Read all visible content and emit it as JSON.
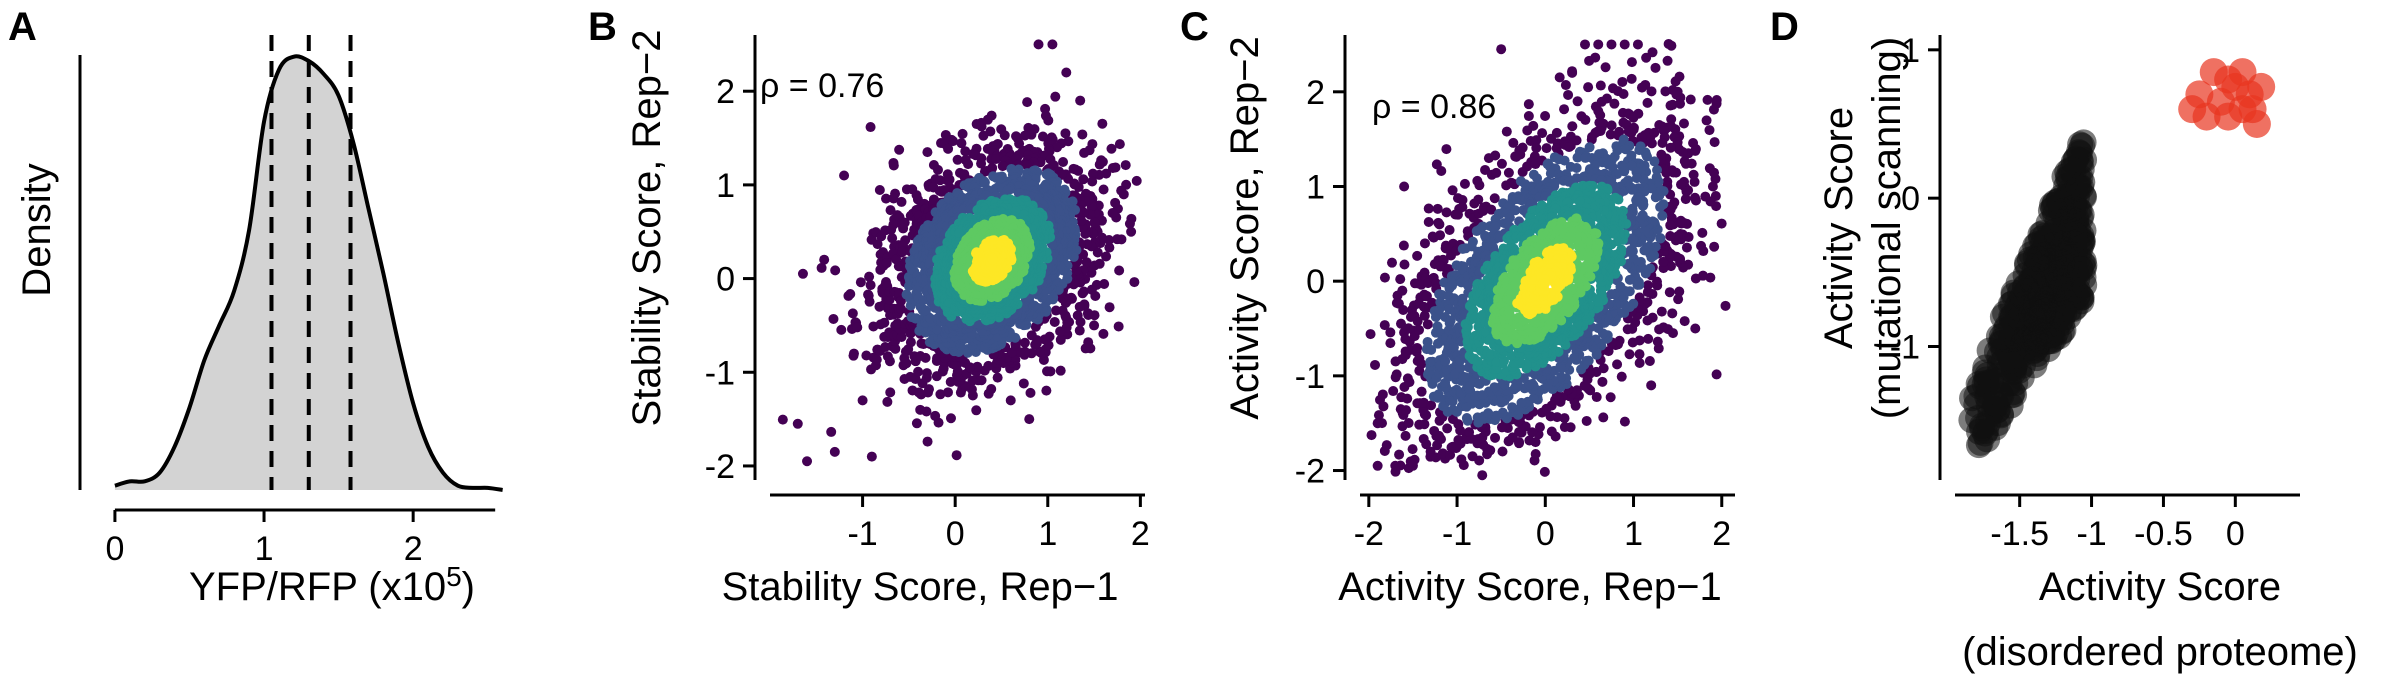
{
  "figure": {
    "background": "#ffffff"
  },
  "chart_data": [
    {
      "panel": "A",
      "type": "area",
      "title": "",
      "xlabel": "YFP/RFP (x10",
      "xlabel_sup": "5",
      "xlabel_close": ")",
      "ylabel": "Density",
      "xlim": [
        -0.1,
        2.75
      ],
      "ylim": [
        0,
        1.05
      ],
      "xticks": [
        0,
        1,
        2
      ],
      "tick_labels": [
        "0",
        "1",
        "2"
      ],
      "fill_color": "#d3d3d3",
      "line_color": "#000000",
      "density_x": [
        0.0,
        0.1,
        0.2,
        0.3,
        0.4,
        0.5,
        0.6,
        0.7,
        0.8,
        0.9,
        1.0,
        1.1,
        1.2,
        1.3,
        1.4,
        1.5,
        1.6,
        1.7,
        1.8,
        1.9,
        2.0,
        2.1,
        2.2,
        2.3,
        2.4,
        2.5,
        2.6
      ],
      "density_y": [
        0.01,
        0.02,
        0.02,
        0.04,
        0.1,
        0.19,
        0.3,
        0.38,
        0.46,
        0.6,
        0.85,
        0.97,
        1.0,
        0.99,
        0.96,
        0.91,
        0.8,
        0.65,
        0.5,
        0.34,
        0.2,
        0.1,
        0.04,
        0.01,
        0.005,
        0.005,
        0.0
      ],
      "dashed_lines_x": [
        1.05,
        1.3,
        1.58
      ]
    },
    {
      "panel": "B",
      "type": "scatter",
      "xlabel": "Stability Score, Rep−1",
      "ylabel": "Stability Score, Rep−2",
      "annotation": "ρ = 0.76",
      "xlim": [
        -2.0,
        2.05
      ],
      "ylim": [
        -2.15,
        2.6
      ],
      "xticks": [
        -1,
        0,
        1,
        2
      ],
      "x_tick_labels": [
        "-1",
        "0",
        "1",
        "2"
      ],
      "yticks": [
        -2,
        -1,
        0,
        1,
        2
      ],
      "y_tick_labels": [
        "-2",
        "-1",
        "0",
        "1",
        "2"
      ],
      "cloud": {
        "center": [
          0.4,
          0.2
        ],
        "rx": 1.05,
        "ry": 1.45,
        "rotate_deg": -38
      },
      "density_colors": [
        "#440154",
        "#3b528b",
        "#21918c",
        "#5ec962",
        "#fde725"
      ],
      "outliers": [
        [
          -1.6,
          -1.95
        ],
        [
          -1.3,
          -1.85
        ],
        [
          -0.9,
          -1.9
        ],
        [
          -1.2,
          1.1
        ],
        [
          -0.3,
          1.35
        ],
        [
          0.9,
          2.5
        ],
        [
          1.05,
          2.5
        ],
        [
          1.2,
          2.2
        ],
        [
          1.7,
          0.7
        ],
        [
          1.5,
          -0.5
        ],
        [
          0.8,
          -1.5
        ],
        [
          0.6,
          -1.3
        ],
        [
          -1.7,
          -1.55
        ],
        [
          -1.0,
          -1.3
        ],
        [
          1.9,
          0.5
        ],
        [
          1.35,
          1.9
        ]
      ]
    },
    {
      "panel": "C",
      "type": "scatter",
      "xlabel": "Activity Score, Rep−1",
      "ylabel": "Activity Score, Rep−2",
      "annotation": "ρ = 0.86",
      "xlim": [
        -2.1,
        2.15
      ],
      "ylim": [
        -2.1,
        2.6
      ],
      "xticks": [
        -2,
        -1,
        0,
        1,
        2
      ],
      "x_tick_labels": [
        "-2",
        "-1",
        "0",
        "1",
        "2"
      ],
      "yticks": [
        -2,
        -1,
        0,
        1,
        2
      ],
      "y_tick_labels": [
        "-2",
        "-1",
        "0",
        "1",
        "2"
      ],
      "cloud": {
        "center": [
          0.0,
          0.0
        ],
        "rx": 1.25,
        "ry": 2.35,
        "rotate_deg": -40
      },
      "density_colors": [
        "#440154",
        "#3b528b",
        "#21918c",
        "#5ec962",
        "#fde725"
      ],
      "outliers": [
        [
          0.45,
          2.5
        ],
        [
          0.6,
          2.5
        ],
        [
          0.75,
          2.5
        ],
        [
          0.9,
          2.5
        ],
        [
          1.05,
          2.5
        ],
        [
          -1.9,
          -1.95
        ],
        [
          -1.7,
          -1.95
        ],
        [
          -1.5,
          -1.95
        ],
        [
          -1.9,
          -1.5
        ],
        [
          -1.6,
          1.0
        ],
        [
          -1.2,
          0.6
        ],
        [
          1.7,
          -0.5
        ],
        [
          1.9,
          1.0
        ],
        [
          1.5,
          2.0
        ],
        [
          -0.5,
          2.45
        ],
        [
          1.2,
          -1.1
        ],
        [
          -1.3,
          -1.8
        ]
      ]
    },
    {
      "panel": "D",
      "type": "scatter",
      "xlabel": "Activity Score",
      "xlabel2": "(disordered proteome)",
      "ylabel": "Activity Score",
      "ylabel2": "(mutational scanning)",
      "xlim": [
        -1.95,
        0.45
      ],
      "ylim": [
        -1.9,
        1.1
      ],
      "xticks": [
        -1.5,
        -1,
        -0.5,
        0
      ],
      "x_tick_labels": [
        "-1.5",
        "-1",
        "-0.5",
        "0"
      ],
      "yticks": [
        -1,
        0,
        1
      ],
      "y_tick_labels": [
        "-1",
        "0",
        "1"
      ],
      "colors": {
        "proteome": "#111111",
        "designed": "#e8351f"
      },
      "proteome_band": {
        "x_start": -1.85,
        "x_end": -1.05,
        "y_start_low": -1.8,
        "y_start_high": -1.3,
        "y_end_low": -0.7,
        "y_end_high": 0.45
      },
      "red_points": [
        [
          -0.3,
          0.6
        ],
        [
          -0.25,
          0.7
        ],
        [
          -0.2,
          0.55
        ],
        [
          -0.1,
          0.65
        ],
        [
          -0.05,
          0.8
        ],
        [
          0.0,
          0.75
        ],
        [
          0.05,
          0.6
        ],
        [
          0.1,
          0.7
        ],
        [
          0.15,
          0.5
        ],
        [
          0.18,
          0.75
        ],
        [
          -0.15,
          0.85
        ],
        [
          0.05,
          0.85
        ],
        [
          0.12,
          0.6
        ],
        [
          -0.05,
          0.55
        ]
      ]
    }
  ]
}
